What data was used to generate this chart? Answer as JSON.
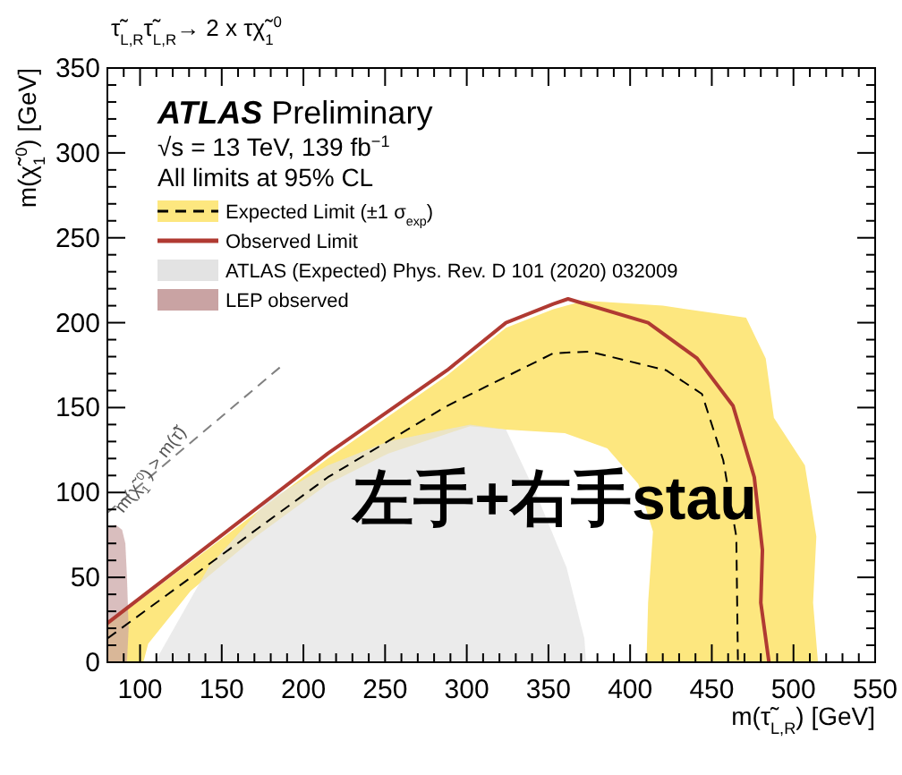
{
  "chart_data": {
    "type": "line",
    "title": "τ̃$_{L,R}$τ̃$_{L,R}$→ 2 x τχ̃$_{1}$$^{0}$",
    "xlabel": "m(τ̃$_{L,R}$) [GeV]",
    "ylabel": "m(χ̃$_{1}$$^{0}$) [GeV]",
    "xlim": [
      80,
      550
    ],
    "xticks": [
      100,
      150,
      200,
      250,
      300,
      350,
      400,
      450,
      500,
      550
    ],
    "ylim": [
      0,
      350
    ],
    "yticks": [
      0,
      50,
      100,
      150,
      200,
      250,
      300,
      350
    ],
    "legend": "top left",
    "grid": false,
    "annotations": [
      "ATLAS Preliminary",
      "√s = 13 TeV, 139 fb$^{−1}$",
      "All limits at 95% CL",
      "左手+右手stau",
      {
        "text": "m(χ̃$_{1}$$^{0}$) > m(τ̃)",
        "x": 120,
        "y": 120
      }
    ],
    "series": [
      {
        "type": "area",
        "color": "#fde77f",
        "x": [
          80,
          80,
          215,
          288,
          324,
          353,
          372,
          420,
          471,
          483,
          488,
          507,
          514,
          512,
          515,
          410,
          411,
          414,
          405,
          386,
          360,
          324,
          302,
          252,
          215,
          171,
          131,
          105,
          102
        ],
        "values": [
          0,
          22,
          120,
          169,
          197,
          208,
          213,
          210,
          203,
          179,
          144,
          116,
          74,
          35,
          0,
          0,
          35,
          77,
          105,
          126,
          135,
          137,
          139,
          123,
          105,
          74,
          42,
          11,
          0
        ]
      },
      {
        "type": "area",
        "color": "#e3e3e3",
        "name": "ATLAS (Expected) Phys. Rev. D 101 (2020) 032009",
        "x": [
          109,
          142,
          178,
          215,
          252,
          302,
          324,
          343,
          361,
          372,
          373
        ],
        "values": [
          0,
          56,
          95,
          116,
          130,
          140,
          137,
          98,
          56,
          14,
          0
        ]
      },
      {
        "type": "area",
        "color": "#c9a3a3",
        "name": "LEP observed",
        "x": [
          80,
          80,
          85,
          89,
          91,
          92,
          93,
          92
        ],
        "values": [
          0,
          79,
          81,
          78,
          70,
          50,
          20,
          0
        ]
      },
      {
        "color": "#808080",
        "line_style": "dashed",
        "x": [
          80,
          186
        ],
        "values": [
          88,
          174
        ]
      },
      {
        "color": "#000000",
        "line_style": "dashed",
        "name": "Expected Limit (±1 σ$_{exp}$)",
        "x": [
          80,
          215,
          288,
          353,
          375,
          422,
          444,
          457,
          465,
          466
        ],
        "values": [
          14,
          109,
          151,
          182,
          183,
          172,
          158,
          119,
          74,
          0
        ]
      },
      {
        "color": "#b03a32",
        "line_style": "solid",
        "name": "Observed Limit",
        "x": [
          80,
          215,
          288,
          324,
          353,
          362,
          411,
          441,
          463,
          476,
          481,
          480,
          485
        ],
        "values": [
          23,
          123,
          172,
          200,
          211,
          214,
          200,
          179,
          151,
          109,
          66,
          35,
          0
        ]
      }
    ]
  }
}
